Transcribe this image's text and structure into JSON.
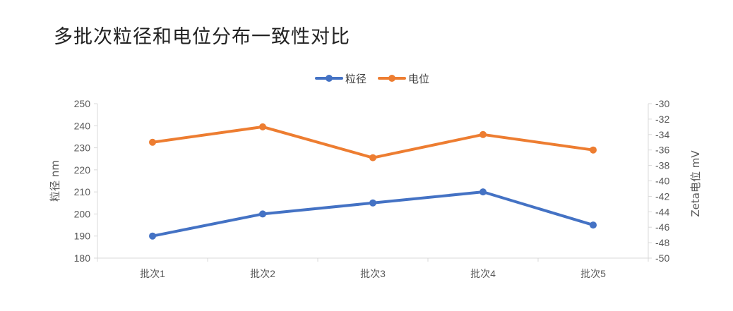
{
  "chart_data": {
    "type": "line",
    "title": "多批次粒径和电位分布一致性对比",
    "categories": [
      "批次1",
      "批次2",
      "批次3",
      "批次4",
      "批次5"
    ],
    "series": [
      {
        "name": "粒径",
        "axis": "left",
        "color": "#4472C4",
        "values": [
          190,
          200,
          205,
          210,
          195
        ]
      },
      {
        "name": "电位",
        "axis": "right",
        "color": "#ED7D31",
        "values": [
          -35,
          -33,
          -37,
          -34,
          -36
        ]
      }
    ],
    "y_left": {
      "label": "粒径 nm",
      "min": 180,
      "max": 250,
      "step": 10
    },
    "y_right": {
      "label": "Zeta电位 mV",
      "min": -50,
      "max": -30,
      "step": 2
    },
    "legend": "top-center",
    "grid": false
  }
}
